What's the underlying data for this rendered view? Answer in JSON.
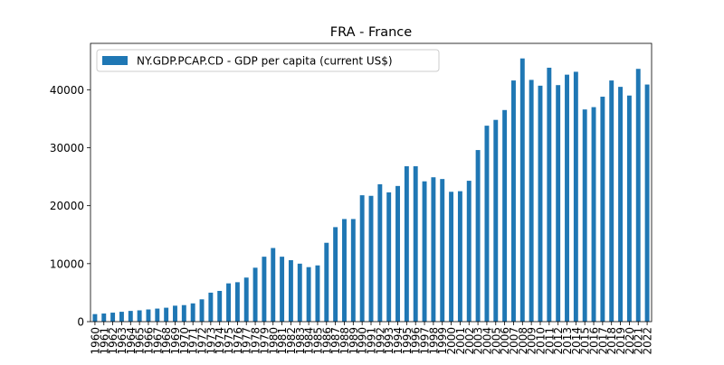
{
  "chart_data": {
    "type": "bar",
    "title": "FRA - France",
    "xlabel": "",
    "ylabel": "",
    "ylim": [
      0,
      48000
    ],
    "yticks": [
      0,
      10000,
      20000,
      30000,
      40000
    ],
    "grid": false,
    "legend_position": "top-left",
    "bar_color": "#1f77b4",
    "categories": [
      "1960",
      "1961",
      "1962",
      "1963",
      "1964",
      "1965",
      "1966",
      "1967",
      "1968",
      "1969",
      "1970",
      "1971",
      "1972",
      "1973",
      "1974",
      "1975",
      "1976",
      "1977",
      "1978",
      "1979",
      "1980",
      "1981",
      "1982",
      "1983",
      "1984",
      "1985",
      "1986",
      "1987",
      "1988",
      "1989",
      "1990",
      "1991",
      "1992",
      "1993",
      "1994",
      "1995",
      "1996",
      "1997",
      "1998",
      "1999",
      "2000",
      "2001",
      "2002",
      "2003",
      "2004",
      "2005",
      "2006",
      "2007",
      "2008",
      "2009",
      "2010",
      "2011",
      "2012",
      "2013",
      "2014",
      "2015",
      "2016",
      "2017",
      "2018",
      "2019",
      "2020",
      "2021",
      "2022"
    ],
    "series": [
      {
        "name": "NY.GDP.PCAP.CD - GDP per capita (current US$)",
        "values": [
          1300,
          1400,
          1550,
          1700,
          1850,
          1950,
          2100,
          2250,
          2400,
          2750,
          2850,
          3150,
          3850,
          5000,
          5300,
          6600,
          6800,
          7600,
          9300,
          11200,
          12700,
          11200,
          10600,
          10000,
          9400,
          9700,
          13600,
          16300,
          17700,
          17700,
          21800,
          21700,
          23700,
          22300,
          23400,
          26800,
          26800,
          24200,
          24900,
          24600,
          22400,
          22500,
          24300,
          29600,
          33800,
          34800,
          36500,
          41600,
          45400,
          41700,
          40700,
          43800,
          40800,
          42600,
          43100,
          36600,
          37000,
          38800,
          41600,
          40500,
          39000,
          43600,
          40900
        ]
      }
    ]
  }
}
